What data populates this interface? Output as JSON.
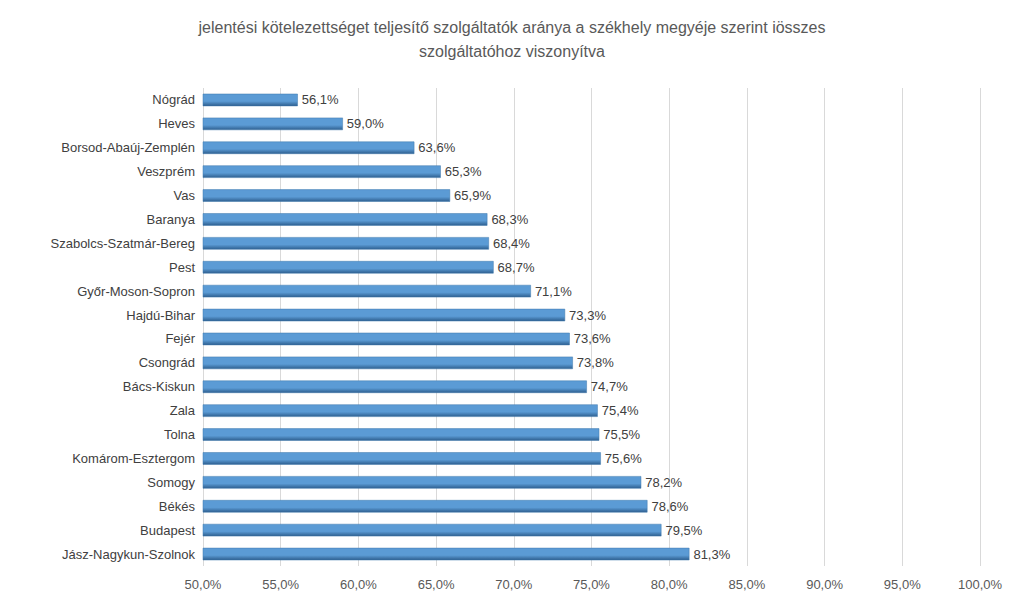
{
  "chart_data": {
    "type": "bar",
    "orientation": "horizontal",
    "title": "jelentési kötelezettséget teljesítő szolgáltatók aránya a székhely megyéje szerint iösszes\nszolgáltatóhoz viszonyítva",
    "categories": [
      "Nógrád",
      "Heves",
      "Borsod-Abaúj-Zemplén",
      "Veszprém",
      "Vas",
      "Baranya",
      "Szabolcs-Szatmár-Bereg",
      "Pest",
      "Győr-Moson-Sopron",
      "Hajdú-Bihar",
      "Fejér",
      "Csongrád",
      "Bács-Kiskun",
      "Zala",
      "Tolna",
      "Komárom-Esztergom",
      "Somogy",
      "Békés",
      "Budapest",
      "Jász-Nagykun-Szolnok"
    ],
    "values": [
      56.1,
      59.0,
      63.6,
      65.3,
      65.9,
      68.3,
      68.4,
      68.7,
      71.1,
      73.3,
      73.6,
      73.8,
      74.7,
      75.4,
      75.5,
      75.6,
      78.2,
      78.6,
      79.5,
      81.3
    ],
    "value_labels": [
      "56,1%",
      "59,0%",
      "63,6%",
      "65,3%",
      "65,9%",
      "68,3%",
      "68,4%",
      "68,7%",
      "71,1%",
      "73,3%",
      "73,6%",
      "73,8%",
      "74,7%",
      "75,4%",
      "75,5%",
      "75,6%",
      "78,2%",
      "78,6%",
      "79,5%",
      "81,3%"
    ],
    "data_labels": true,
    "color": "#5b9bd5",
    "xlim": [
      50,
      100
    ],
    "xticks": [
      {
        "value": 50,
        "label": "50,0%"
      },
      {
        "value": 55,
        "label": "55,0%"
      },
      {
        "value": 60,
        "label": "60,0%"
      },
      {
        "value": 65,
        "label": "65,0%"
      },
      {
        "value": 70,
        "label": "70,0%"
      },
      {
        "value": 75,
        "label": "75,0%"
      },
      {
        "value": 80,
        "label": "80,0%"
      },
      {
        "value": 85,
        "label": "85,0%"
      },
      {
        "value": 90,
        "label": "90,0%"
      },
      {
        "value": 95,
        "label": "95,0%"
      },
      {
        "value": 100,
        "label": "100,0%"
      }
    ],
    "grid": true
  }
}
